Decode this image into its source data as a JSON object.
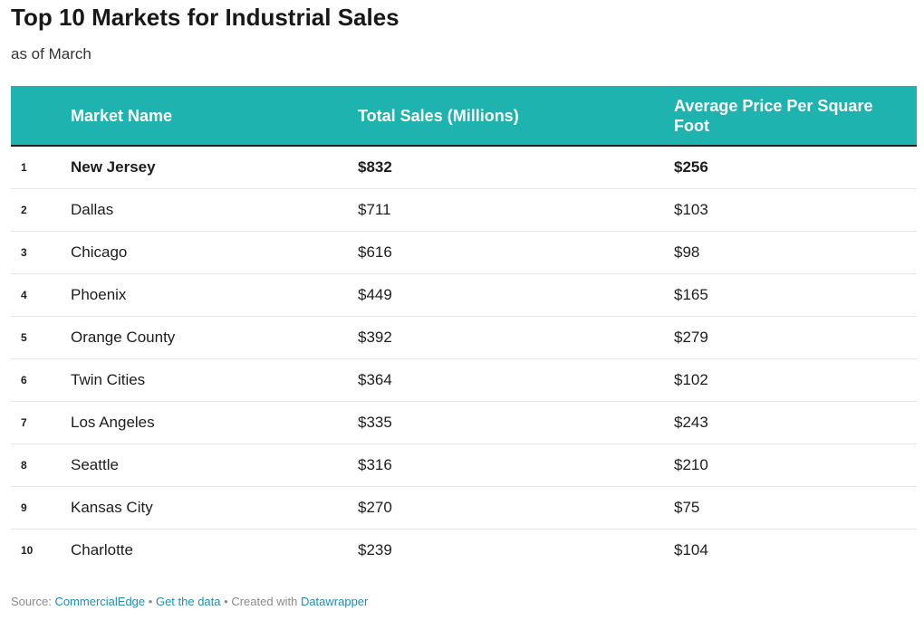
{
  "header": {
    "title": "Top 10 Markets for Industrial Sales",
    "subtitle": "as of March"
  },
  "chart_data": {
    "type": "table",
    "title": "Top 10 Markets for Industrial Sales",
    "subtitle": "as of March",
    "columns": [
      "",
      "Market Name",
      "Total Sales (Millions)",
      "Average Price Per Square Foot"
    ],
    "rows": [
      {
        "rank": "1",
        "market": "New Jersey",
        "sales": "$832",
        "price": "$256"
      },
      {
        "rank": "2",
        "market": "Dallas",
        "sales": "$711",
        "price": "$103"
      },
      {
        "rank": "3",
        "market": "Chicago",
        "sales": "$616",
        "price": "$98"
      },
      {
        "rank": "4",
        "market": "Phoenix",
        "sales": "$449",
        "price": "$165"
      },
      {
        "rank": "5",
        "market": "Orange County",
        "sales": "$392",
        "price": "$279"
      },
      {
        "rank": "6",
        "market": "Twin Cities",
        "sales": "$364",
        "price": "$102"
      },
      {
        "rank": "7",
        "market": "Los Angeles",
        "sales": "$335",
        "price": "$243"
      },
      {
        "rank": "8",
        "market": "Seattle",
        "sales": "$316",
        "price": "$210"
      },
      {
        "rank": "9",
        "market": "Kansas City",
        "sales": "$270",
        "price": "$75"
      },
      {
        "rank": "10",
        "market": "Charlotte",
        "sales": "$239",
        "price": "$104"
      }
    ],
    "header_color": "#1eb3ae"
  },
  "footer": {
    "source_label": "Source:",
    "source_link": "CommercialEdge",
    "separator": "•",
    "data_link": "Get the data",
    "created_label": "Created with",
    "created_link": "Datawrapper"
  },
  "colors": {
    "accent": "#1eb3ae",
    "link": "#1b8fb8"
  }
}
